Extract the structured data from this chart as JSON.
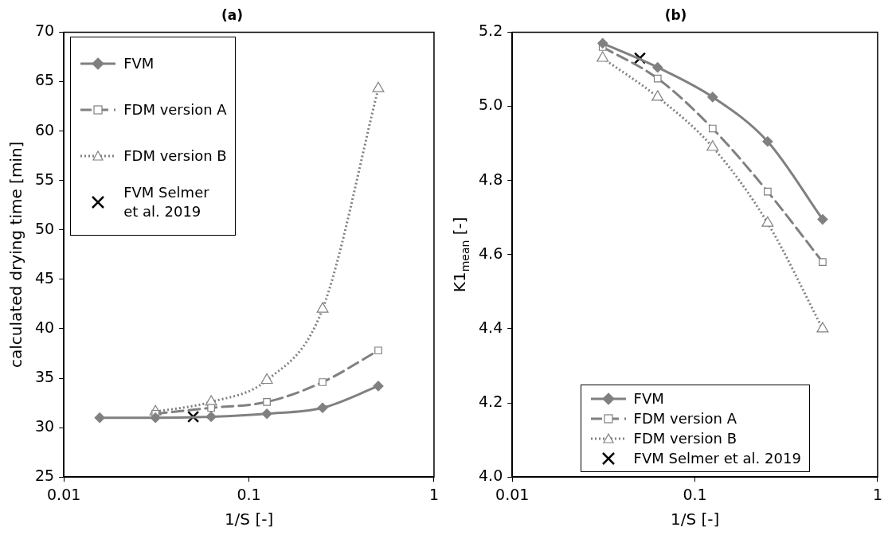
{
  "chart_data": [
    {
      "type": "line",
      "title": "(a)",
      "xlabel": "1/S [-]",
      "ylabel": "calculated drying time [min]",
      "log": "x",
      "grid": false,
      "legend": "top left",
      "xlim": [
        0.01,
        1
      ],
      "xticks": [
        0.01,
        0.1,
        1
      ],
      "ylim": [
        25,
        70
      ],
      "yticks": [
        25,
        30,
        35,
        40,
        45,
        50,
        55,
        60,
        65,
        70
      ],
      "series": [
        {
          "name": "FVM",
          "color": "#808080",
          "marker": "diamond",
          "line_style": "solid",
          "x": [
            0.015625,
            0.03125,
            0.0625,
            0.125,
            0.25,
            0.5
          ],
          "values": [
            31.0,
            31.0,
            31.1,
            31.4,
            32.0,
            34.2
          ]
        },
        {
          "name": "FDM version A",
          "color": "#808080",
          "marker": "square",
          "line_style": "dashed",
          "x": [
            0.03125,
            0.0625,
            0.125,
            0.25,
            0.5
          ],
          "values": [
            31.4,
            32.0,
            32.6,
            34.6,
            37.8
          ]
        },
        {
          "name": "FDM version B",
          "color": "#808080",
          "marker": "triangle",
          "line_style": "dotted",
          "x": [
            0.03125,
            0.0625,
            0.125,
            0.25,
            0.5
          ],
          "values": [
            31.6,
            32.6,
            34.8,
            42.0,
            64.3
          ]
        },
        {
          "name": "FVM Selmer et al. 2019",
          "type": "scatter",
          "color": "#000000",
          "marker": "cross",
          "x": [
            0.05
          ],
          "values": [
            31.1
          ]
        }
      ]
    },
    {
      "type": "line",
      "title": "(b)",
      "xlabel": "1/S [-]",
      "ylabel": "K1$_{mean}$ [-]",
      "log": "x",
      "grid": false,
      "legend": "bottom",
      "xlim": [
        0.01,
        1
      ],
      "xticks": [
        0.01,
        0.1,
        1
      ],
      "ylim": [
        4.0,
        5.2
      ],
      "yticks": [
        {
          "value": 4.0,
          "label": "4.0"
        },
        4.2,
        4.4,
        4.6,
        4.8,
        {
          "value": 5.0,
          "label": "5.0"
        },
        5.2
      ],
      "series": [
        {
          "name": "FVM",
          "color": "#808080",
          "marker": "diamond",
          "line_style": "solid",
          "x": [
            0.03125,
            0.0625,
            0.125,
            0.25,
            0.5
          ],
          "values": [
            5.17,
            5.105,
            5.025,
            4.905,
            4.695
          ]
        },
        {
          "name": "FDM version A",
          "color": "#808080",
          "marker": "square",
          "line_style": "dashed",
          "x": [
            0.03125,
            0.0625,
            0.125,
            0.25,
            0.5
          ],
          "values": [
            5.16,
            5.075,
            4.94,
            4.77,
            4.58
          ]
        },
        {
          "name": "FDM version B",
          "color": "#808080",
          "marker": "triangle",
          "line_style": "dotted",
          "x": [
            0.03125,
            0.0625,
            0.125,
            0.25,
            0.5
          ],
          "values": [
            5.13,
            5.025,
            4.89,
            4.685,
            4.4
          ]
        },
        {
          "name": "FVM Selmer et al. 2019",
          "type": "scatter",
          "color": "#000000",
          "marker": "cross",
          "x": [
            0.05
          ],
          "values": [
            5.13
          ]
        }
      ]
    }
  ]
}
